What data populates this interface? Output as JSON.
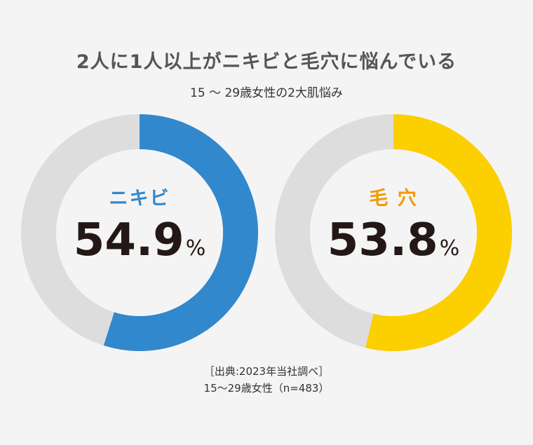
{
  "title": "2人に1人以上がニキビと毛穴に悩んでいる",
  "subtitle": "15 〜 29歳女性の2大肌悩み",
  "chart_data": [
    {
      "type": "pie",
      "label": "ニキビ",
      "value": 54.9,
      "display_value": "54.9",
      "unit": "%",
      "color": "#3288cc",
      "track_color": "#dddddd",
      "label_color": "#3288cc"
    },
    {
      "type": "pie",
      "label": "毛 穴",
      "value": 53.8,
      "display_value": "53.8",
      "unit": "%",
      "color": "#fccf00",
      "track_color": "#dddddd",
      "label_color": "#f29800"
    }
  ],
  "source": {
    "line1": "［出典:2023年当社調べ］",
    "line2": "15〜29歳女性（n=483）"
  }
}
